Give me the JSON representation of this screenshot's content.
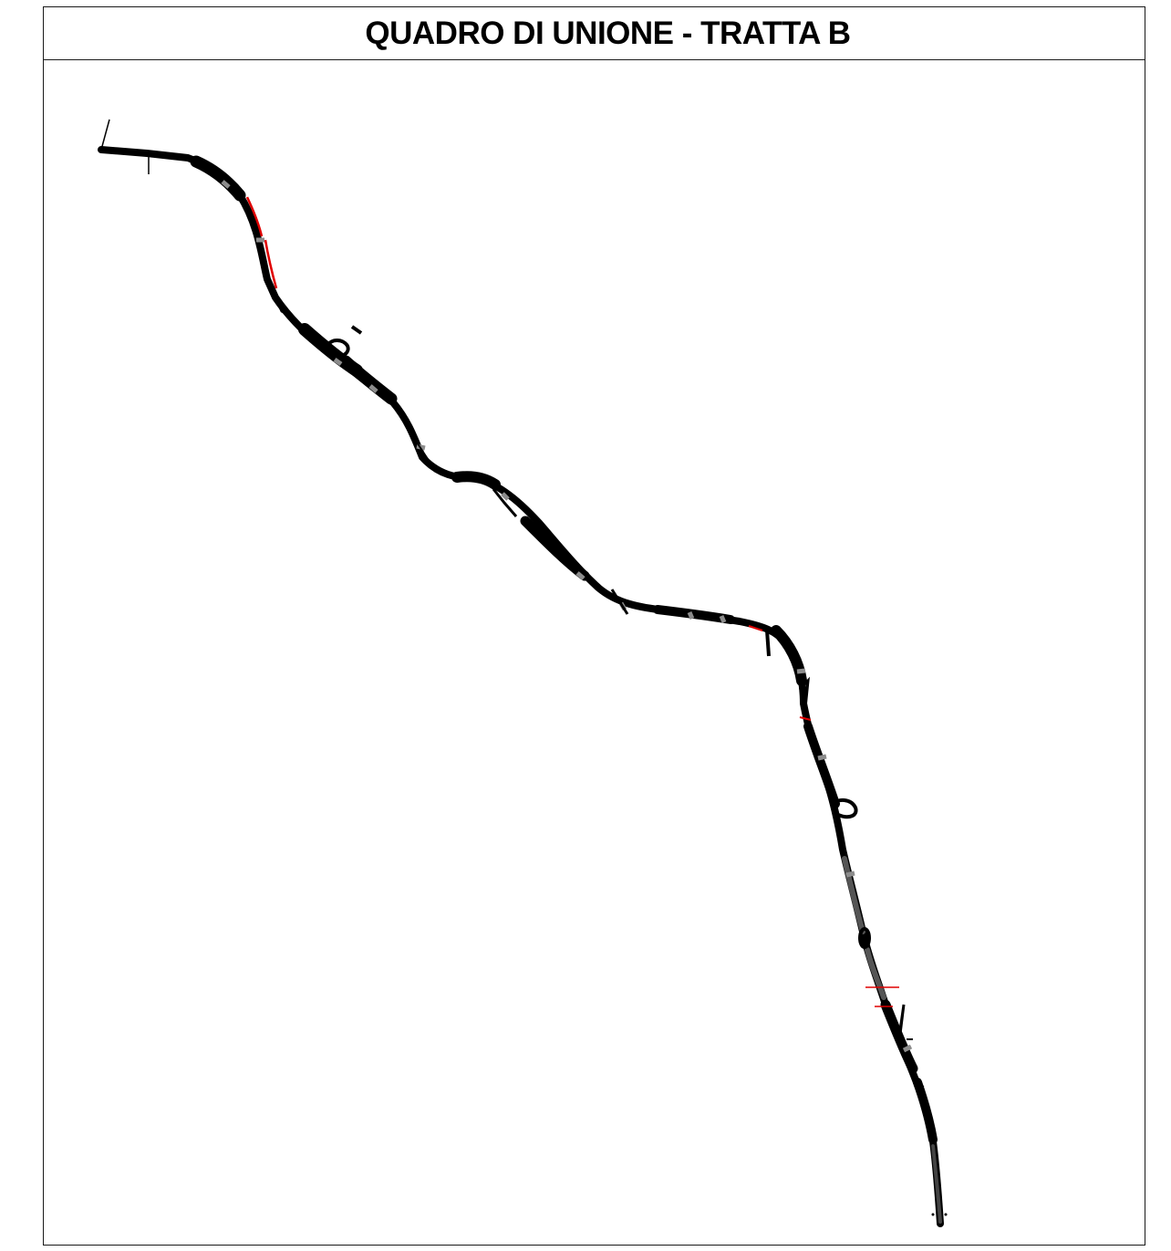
{
  "sheet": {
    "title": "QUADRO DI UNIONE - TRATTA B"
  },
  "map": {
    "colors": {
      "route": "#000000",
      "joint": "#8c8c8c",
      "highlight": "#e00000",
      "frame": "#1a1a1a"
    }
  }
}
